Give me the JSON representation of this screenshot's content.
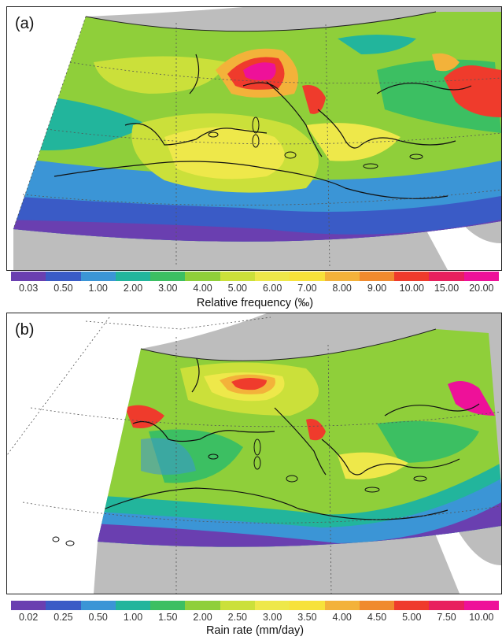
{
  "panels": [
    {
      "label": "(a)",
      "colorbar": {
        "title": "Relative frequency (‰)",
        "ticks": [
          "0.03",
          "0.50",
          "1.00",
          "2.00",
          "3.00",
          "4.00",
          "5.00",
          "6.00",
          "7.00",
          "8.00",
          "9.00",
          "10.00",
          "15.00",
          "20.00"
        ],
        "colors": [
          "#6a3fb0",
          "#3a5bc6",
          "#3b95d6",
          "#22b59c",
          "#3cbf62",
          "#8fcf3a",
          "#cbe03a",
          "#eee84a",
          "#f7e23a",
          "#f3b23a",
          "#f08a2e",
          "#ef3b2c",
          "#e8205e",
          "#ee1199"
        ]
      }
    },
    {
      "label": "(b)",
      "colorbar": {
        "title": "Rain rate (mm/day)",
        "ticks": [
          "0.02",
          "0.25",
          "0.50",
          "1.00",
          "1.50",
          "2.00",
          "2.50",
          "3.00",
          "3.50",
          "4.00",
          "4.50",
          "5.00",
          "7.50",
          "10.00"
        ],
        "colors": [
          "#6a3fb0",
          "#3a5bc6",
          "#3b95d6",
          "#22b59c",
          "#3cbf62",
          "#8fcf3a",
          "#cbe03a",
          "#eee84a",
          "#f7e23a",
          "#f3b23a",
          "#f08a2e",
          "#ef3b2c",
          "#e8205e",
          "#ee1199"
        ]
      }
    }
  ],
  "map_colors": {
    "land_gray": "#bdbdbd",
    "ocean_white": "#ffffff",
    "coast": "#111111"
  }
}
